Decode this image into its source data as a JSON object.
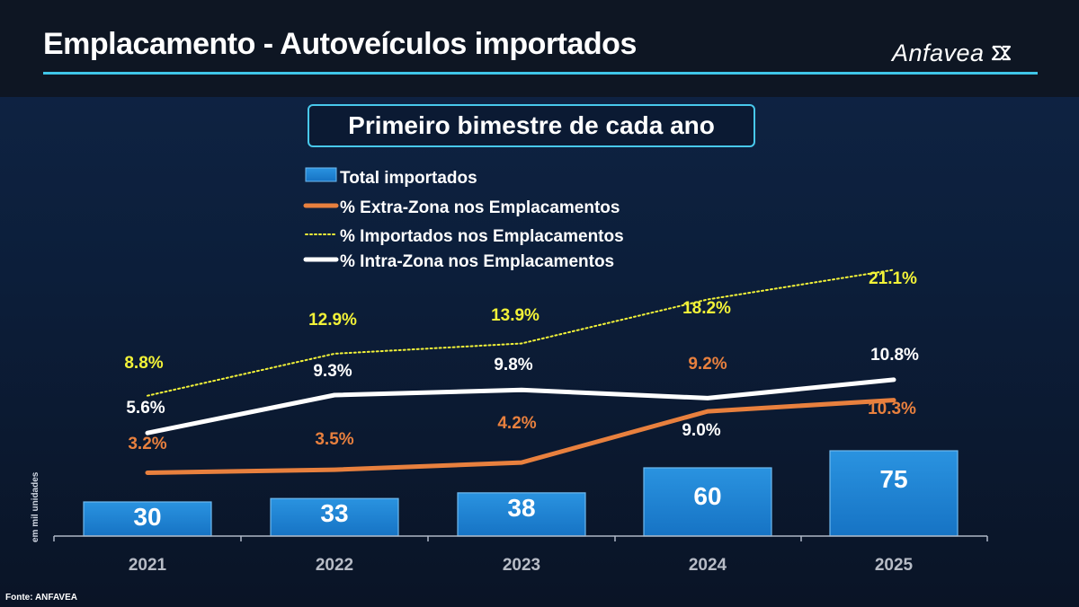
{
  "header": {
    "title": "Emplacamento - Autoveículos importados",
    "logo_text": "Anfavea",
    "logo_icon": "anfavea-emblem-icon"
  },
  "subtitle": "Primeiro bimestre de cada ano",
  "source": "Fonte: ANFAVEA",
  "colors": {
    "bar": "#1e86d6",
    "extra_zona": "#e8803e",
    "importados": "#f2f238",
    "intra_zona": "#ffffff",
    "accent": "#3fc6e8"
  },
  "chart_data": {
    "type": "bar",
    "title": "Primeiro bimestre de cada ano",
    "categories": [
      "2021",
      "2022",
      "2023",
      "2024",
      "2025"
    ],
    "ylabel": "em mil unidades",
    "bars": {
      "name": "Total importados",
      "values": [
        30,
        33,
        38,
        60,
        75
      ],
      "labels": [
        "30",
        "33",
        "38",
        "60",
        "75"
      ]
    },
    "series": [
      {
        "name": "% Extra-Zona nos Emplacamentos",
        "type": "line",
        "values": [
          3.2,
          3.5,
          4.2,
          9.2,
          10.3
        ],
        "labels": [
          "3.2%",
          "3.5%",
          "4.2%",
          "9.2%",
          "10.3%"
        ],
        "color": "#e8803e"
      },
      {
        "name": "% Importados nos Emplacamentos",
        "type": "line",
        "style": "dotted",
        "values": [
          8.8,
          12.9,
          13.9,
          18.2,
          21.1
        ],
        "labels": [
          "8.8%",
          "12.9%",
          "13.9%",
          "18.2%",
          "21.1%"
        ],
        "color": "#f2f238"
      },
      {
        "name": "% Intra-Zona nos Emplacamentos",
        "type": "line",
        "values": [
          5.6,
          9.3,
          9.8,
          9.0,
          10.8
        ],
        "labels": [
          "5.6%",
          "9.3%",
          "9.8%",
          "9.0%",
          "10.8%"
        ],
        "color": "#ffffff"
      }
    ],
    "legend_position": "top-center",
    "grid": false
  }
}
